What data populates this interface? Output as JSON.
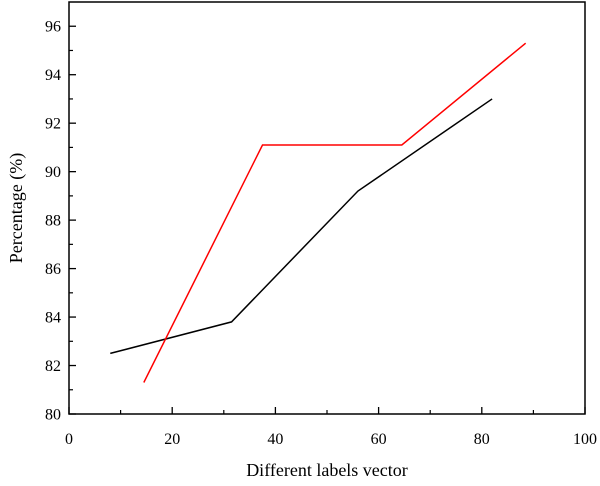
{
  "chart_data": {
    "type": "line",
    "xlabel": "Different labels vector",
    "ylabel": "Percentage (%)",
    "xlim": [
      0,
      100
    ],
    "ylim": [
      80,
      97
    ],
    "xticks": [
      0,
      20,
      40,
      60,
      80,
      100
    ],
    "yticks": [
      80,
      82,
      84,
      86,
      88,
      90,
      92,
      94,
      96
    ],
    "x_minor_step": 10,
    "y_minor_step": 1,
    "grid": false,
    "legend": "none",
    "series": [
      {
        "color": "#000000",
        "points": [
          [
            8,
            82.5
          ],
          [
            31.5,
            83.8
          ],
          [
            56,
            89.2
          ],
          [
            82,
            93.0
          ]
        ]
      },
      {
        "color": "#ff0000",
        "points": [
          [
            14.5,
            81.3
          ],
          [
            37.5,
            91.1
          ],
          [
            64.5,
            91.1
          ],
          [
            88.5,
            95.3
          ]
        ]
      }
    ]
  }
}
